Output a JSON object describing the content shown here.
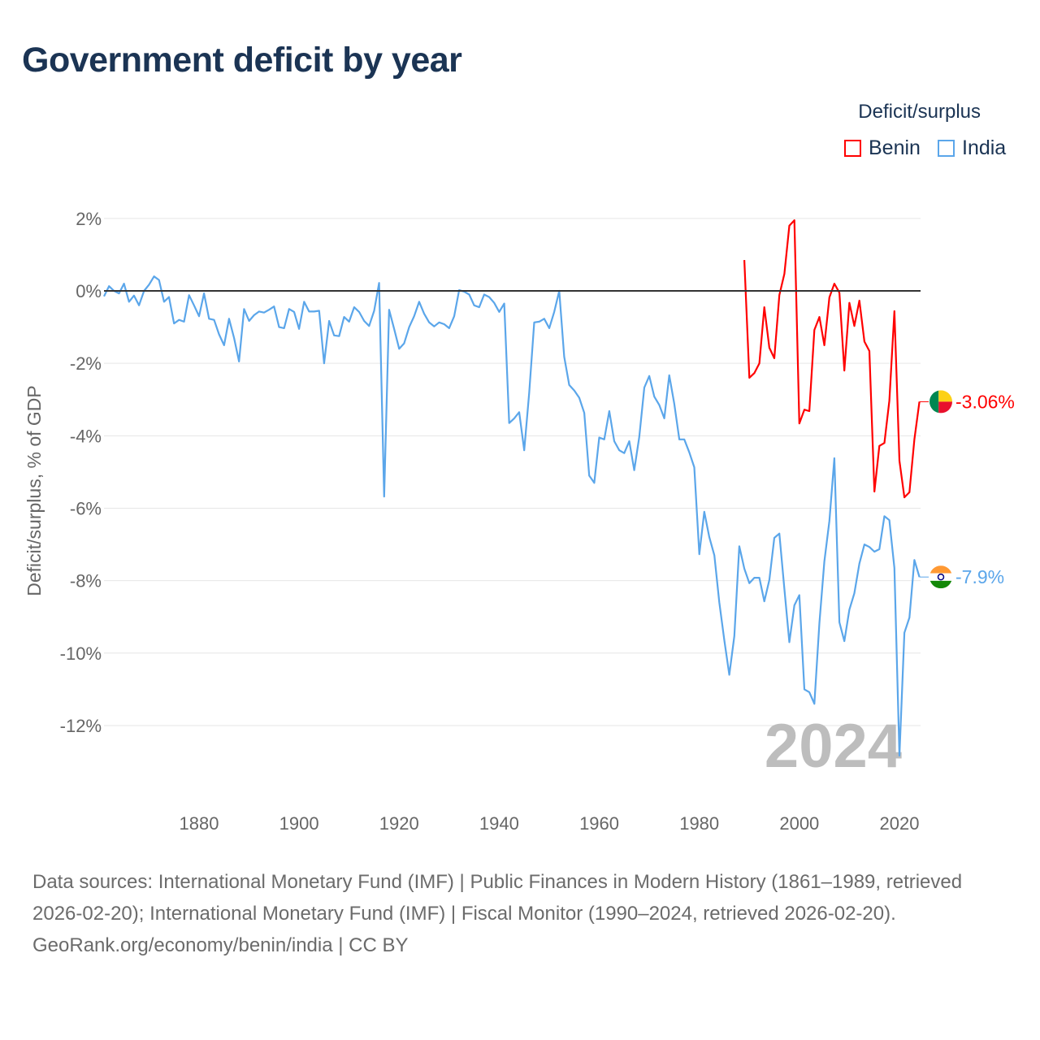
{
  "title": "Government deficit by year",
  "legend": {
    "title": "Deficit/surplus",
    "items": [
      {
        "name": "Benin",
        "color": "#ff0000"
      },
      {
        "name": "India",
        "color": "#5ba6ea"
      }
    ]
  },
  "chart_data": {
    "type": "line",
    "title": "Government deficit by year",
    "xlabel": "",
    "ylabel": "Deficit/surplus, % of GDP",
    "xlim": [
      1861,
      2024
    ],
    "ylim": [
      -13,
      2
    ],
    "x_ticks": [
      1880,
      1900,
      1920,
      1940,
      1960,
      1980,
      2000,
      2020
    ],
    "x_tick_labels": [
      "1880",
      "1900",
      "1920",
      "1940",
      "1960",
      "1980",
      "2000",
      "2020"
    ],
    "y_ticks": [
      2,
      0,
      -2,
      -4,
      -6,
      -8,
      -10,
      -12
    ],
    "y_tick_labels": [
      "2%",
      "0%",
      "-2%",
      "-4%",
      "-6%",
      "-8%",
      "-10%",
      "-12%"
    ],
    "grid": true,
    "legend_position": "top-right",
    "year_watermark": "2024",
    "series": [
      {
        "name": "Benin",
        "color": "#ff0000",
        "start_year": 1989,
        "end_label": "-3.06%",
        "values": [
          0.85,
          -2.4,
          -2.27,
          -2.0,
          -0.45,
          -1.57,
          -1.86,
          -0.12,
          0.47,
          1.8,
          1.95,
          -3.66,
          -3.28,
          -3.32,
          -1.08,
          -0.72,
          -1.5,
          -0.18,
          0.2,
          -0.05,
          -2.2,
          -0.33,
          -0.97,
          -0.27,
          -1.4,
          -1.66,
          -5.54,
          -4.28,
          -4.2,
          -3.03,
          -0.56,
          -4.69,
          -5.7,
          -5.56,
          -4.1,
          -3.06
        ]
      },
      {
        "name": "India",
        "color": "#5ba6ea",
        "start_year": 1861,
        "end_label": "-7.9%",
        "values": [
          -0.15,
          0.13,
          0,
          -0.07,
          0.2,
          -0.3,
          -0.13,
          -0.4,
          0,
          0.17,
          0.4,
          0.3,
          -0.3,
          -0.17,
          -0.9,
          -0.8,
          -0.85,
          -0.12,
          -0.4,
          -0.7,
          -0.07,
          -0.77,
          -0.8,
          -1.2,
          -1.5,
          -0.77,
          -1.3,
          -1.95,
          -0.5,
          -0.83,
          -0.67,
          -0.57,
          -0.6,
          -0.52,
          -0.43,
          -1.0,
          -1.03,
          -0.5,
          -0.58,
          -1.05,
          -0.3,
          -0.57,
          -0.57,
          -0.55,
          -2.0,
          -0.83,
          -1.23,
          -1.25,
          -0.72,
          -0.85,
          -0.45,
          -0.58,
          -0.83,
          -0.97,
          -0.55,
          0.22,
          -5.68,
          -0.52,
          -1.05,
          -1.6,
          -1.45,
          -1.0,
          -0.7,
          -0.3,
          -0.63,
          -0.87,
          -0.98,
          -0.87,
          -0.92,
          -1.03,
          -0.7,
          0.02,
          -0.02,
          -0.1,
          -0.4,
          -0.45,
          -0.1,
          -0.17,
          -0.33,
          -0.58,
          -0.35,
          -3.65,
          -3.52,
          -3.35,
          -4.4,
          -2.82,
          -0.87,
          -0.85,
          -0.77,
          -1.03,
          -0.58,
          0,
          -1.82,
          -2.6,
          -2.75,
          -2.95,
          -3.37,
          -5.1,
          -5.3,
          -4.05,
          -4.1,
          -3.32,
          -4.15,
          -4.4,
          -4.48,
          -4.15,
          -4.95,
          -4.03,
          -2.67,
          -2.35,
          -2.92,
          -3.15,
          -3.52,
          -2.33,
          -3.12,
          -4.1,
          -4.1,
          -4.46,
          -4.87,
          -7.27,
          -6.1,
          -6.8,
          -7.3,
          -8.6,
          -9.65,
          -10.6,
          -9.53,
          -7.05,
          -7.67,
          -8.07,
          -7.92,
          -7.92,
          -8.57,
          -7.98,
          -6.82,
          -6.7,
          -8.23,
          -9.7,
          -8.68,
          -8.4,
          -11.0,
          -11.08,
          -11.4,
          -9.17,
          -7.47,
          -6.35,
          -4.62,
          -9.15,
          -9.67,
          -8.8,
          -8.35,
          -7.53,
          -7.0,
          -7.07,
          -7.2,
          -7.13,
          -6.22,
          -6.33,
          -7.65,
          -12.83,
          -9.44,
          -9.02,
          -7.43,
          -7.9
        ]
      }
    ]
  },
  "footer": {
    "sources": "Data sources: International Monetary Fund (IMF) | Public Finances in Modern History (1861–1989, retrieved 2026-02-20); International Monetary Fund (IMF) | Fiscal Monitor (1990–2024, retrieved 2026-02-20).",
    "credit": "GeoRank.org/economy/benin/india | CC BY"
  }
}
